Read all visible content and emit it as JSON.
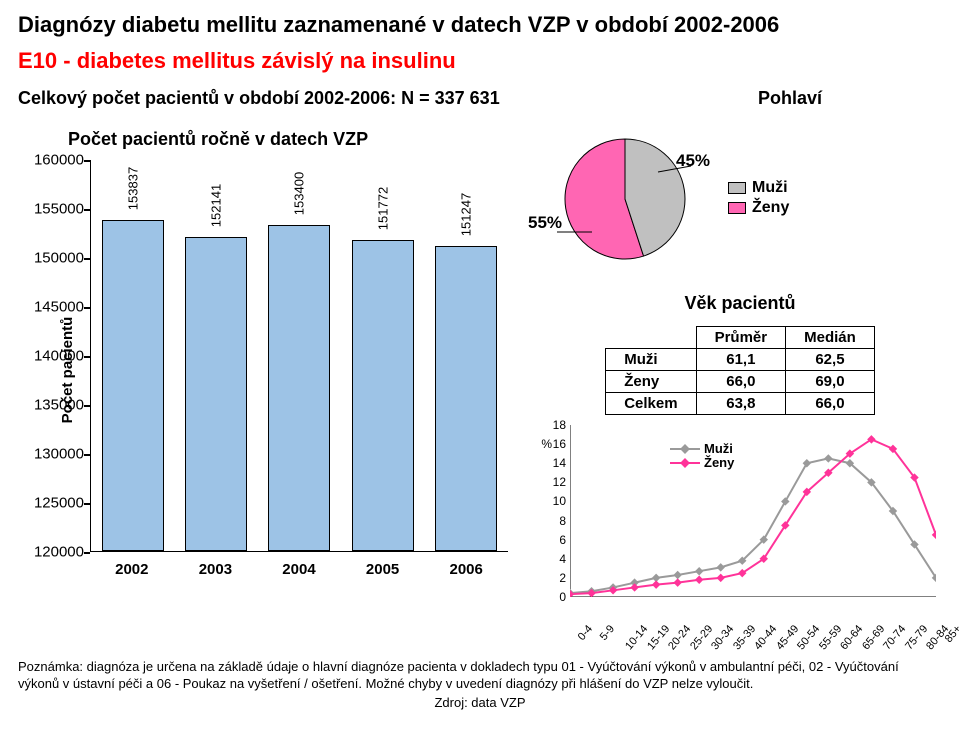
{
  "title": "Diagnózy diabetu mellitu zaznamenané v datech VZP v období 2002-2006",
  "subtitle": "E10 - diabetes mellitus závislý na insulinu",
  "subtitle_color": "#ff0000",
  "total_line": "Celkový počet pacientů v období 2002-2006: N = 337 631",
  "pohlavi_label": "Pohlaví",
  "bar_chart": {
    "title": "Počet pacientů ročně v datech VZP",
    "y_axis_label": "Počet pacientů",
    "ymin": 120000,
    "ymax": 160000,
    "ystep": 5000,
    "y_ticks": [
      "120000",
      "125000",
      "130000",
      "135000",
      "140000",
      "145000",
      "150000",
      "155000",
      "160000"
    ],
    "categories": [
      "2002",
      "2003",
      "2004",
      "2005",
      "2006"
    ],
    "values": [
      153837,
      152141,
      153400,
      151772,
      151247
    ],
    "bar_color": "#9dc3e6",
    "bar_border": "#000000",
    "label_fontsize": 13
  },
  "pie": {
    "muzi_pct": 45,
    "zeny_pct": 55,
    "muzi_label": "45%",
    "zeny_label": "55%",
    "muzi_color": "#c0c0c0",
    "zeny_color": "#ff66b3",
    "legend": {
      "muzi": "Muži",
      "zeny": "Ženy"
    }
  },
  "age_section": {
    "title": "Věk pacientů",
    "col_prumer": "Průměr",
    "col_median": "Medián",
    "rows": [
      {
        "label": "Muži",
        "prumer": "61,1",
        "median": "62,5"
      },
      {
        "label": "Ženy",
        "prumer": "66,0",
        "median": "69,0"
      },
      {
        "label": "Celkem",
        "prumer": "63,8",
        "median": "66,0"
      }
    ]
  },
  "line_chart": {
    "y_ticks": [
      0,
      2,
      4,
      6,
      8,
      10,
      12,
      14,
      16,
      18
    ],
    "pct_label": "%",
    "ymax": 18,
    "categories": [
      "0-4",
      "5-9",
      "10-14",
      "15-19",
      "20-24",
      "25-29",
      "30-34",
      "35-39",
      "40-44",
      "45-49",
      "50-54",
      "55-59",
      "60-64",
      "65-69",
      "70-74",
      "75-79",
      "80-84",
      "85+"
    ],
    "series": [
      {
        "name": "Muži",
        "color": "#9a9a9a",
        "values": [
          0.4,
          0.6,
          1.0,
          1.5,
          2.0,
          2.3,
          2.7,
          3.1,
          3.8,
          6.0,
          10.0,
          14.0,
          14.5,
          14.0,
          12.0,
          9.0,
          5.5,
          2.0
        ]
      },
      {
        "name": "Ženy",
        "color": "#ff3399",
        "values": [
          0.3,
          0.4,
          0.7,
          1.0,
          1.3,
          1.5,
          1.8,
          2.0,
          2.5,
          4.0,
          7.5,
          11.0,
          13.0,
          15.0,
          16.5,
          15.5,
          12.5,
          6.5
        ]
      }
    ],
    "legend": {
      "muzi": "Muži",
      "zeny": "Ženy"
    }
  },
  "footnote": "Poznámka: diagnóza je určena na základě údaje o hlavní diagnóze pacienta v dokladech typu 01 - Vyúčtování výkonů v ambulantní péči, 02 - Vyúčtování výkonů v ústavní péči a 06 - Poukaz na vyšetření / ošetření. Možné chyby v uvedení diagnózy při hlášení do VZP nelze vyloučit.",
  "source": "Zdroj: data VZP"
}
